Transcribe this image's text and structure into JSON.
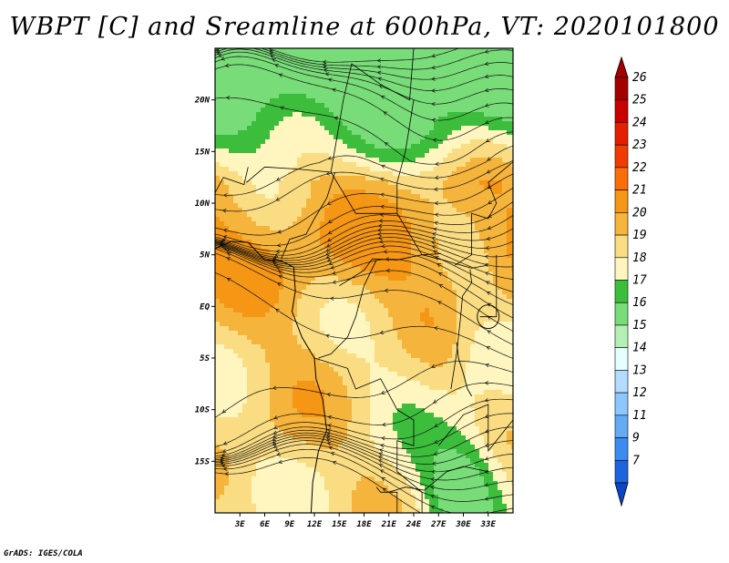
{
  "title": "WBPT [C] and Sreamline at 600hPa, VT: 2020101800",
  "credit": "GrADS: IGES/COLA",
  "map": {
    "lon_range": [
      0,
      36
    ],
    "lat_range": [
      -20,
      25
    ],
    "lat_ticks": [
      {
        "value": 20,
        "label": "20N"
      },
      {
        "value": 15,
        "label": "15N"
      },
      {
        "value": 10,
        "label": "10N"
      },
      {
        "value": 5,
        "label": "5N"
      },
      {
        "value": 0,
        "label": "EQ"
      },
      {
        "value": -5,
        "label": "5S"
      },
      {
        "value": -10,
        "label": "10S"
      },
      {
        "value": -15,
        "label": "15S"
      }
    ],
    "lon_ticks": [
      {
        "value": 3,
        "label": "3E"
      },
      {
        "value": 6,
        "label": "6E"
      },
      {
        "value": 9,
        "label": "9E"
      },
      {
        "value": 12,
        "label": "12E"
      },
      {
        "value": 15,
        "label": "15E"
      },
      {
        "value": 18,
        "label": "18E"
      },
      {
        "value": 21,
        "label": "21E"
      },
      {
        "value": 24,
        "label": "24E"
      },
      {
        "value": 27,
        "label": "27E"
      },
      {
        "value": 30,
        "label": "30E"
      },
      {
        "value": 33,
        "label": "33E"
      }
    ]
  },
  "colorbar": {
    "levels": [
      {
        "label": "26",
        "color": "#a50000"
      },
      {
        "label": "25",
        "color": "#c80000"
      },
      {
        "label": "24",
        "color": "#e61e00"
      },
      {
        "label": "23",
        "color": "#f03c00"
      },
      {
        "label": "22",
        "color": "#fa6e0a"
      },
      {
        "label": "21",
        "color": "#f59614"
      },
      {
        "label": "20",
        "color": "#f5b43c"
      },
      {
        "label": "19",
        "color": "#fadc82"
      },
      {
        "label": "18",
        "color": "#fff5be"
      },
      {
        "label": "17",
        "color": "#3cbe3c"
      },
      {
        "label": "16",
        "color": "#78dc78"
      },
      {
        "label": "15",
        "color": "#b4f0b4"
      },
      {
        "label": "14",
        "color": "#e6ffff"
      },
      {
        "label": "13",
        "color": "#b4dcff"
      },
      {
        "label": "12",
        "color": "#8cc8ff"
      },
      {
        "label": "11",
        "color": "#64aaf5"
      },
      {
        "label": "9",
        "color": "#3c8cf0"
      },
      {
        "label": "7",
        "color": "#1e64dc"
      }
    ],
    "bottom_color": "#0a46c8"
  }
}
